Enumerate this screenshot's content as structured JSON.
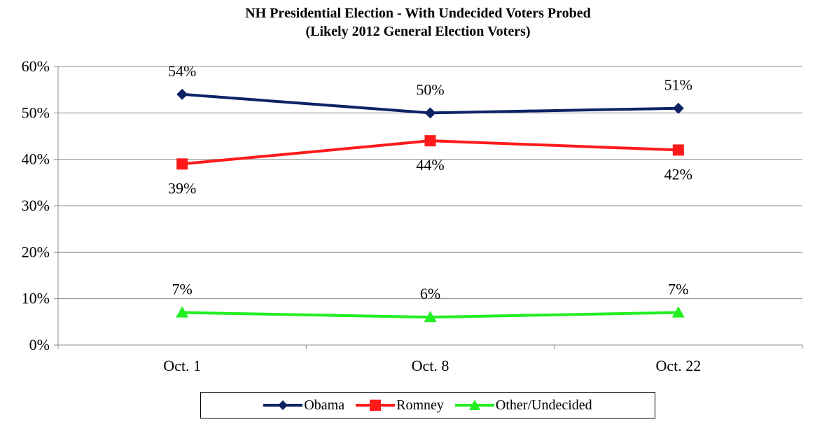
{
  "chart_data": {
    "type": "line",
    "title": "NH Presidential Election - With Undecided Voters Probed",
    "subtitle": "(Likely 2012 General Election Voters)",
    "categories": [
      "Oct. 1",
      "Oct. 8",
      "Oct. 22"
    ],
    "ylim": [
      0,
      60
    ],
    "yticks": [
      "0%",
      "10%",
      "20%",
      "30%",
      "40%",
      "50%",
      "60%"
    ],
    "grid": true,
    "legend_position": "bottom",
    "series": [
      {
        "name": "Obama",
        "values": [
          54,
          50,
          51
        ],
        "labels": [
          "54%",
          "50%",
          "51%"
        ],
        "color": "#0d2366",
        "marker": "diamond",
        "label_position": "above"
      },
      {
        "name": "Romney",
        "values": [
          39,
          44,
          42
        ],
        "labels": [
          "39%",
          "44%",
          "42%"
        ],
        "color": "#ff1a1a",
        "marker": "square",
        "label_position": "below"
      },
      {
        "name": "Other/Undecided",
        "values": [
          7,
          6,
          7
        ],
        "labels": [
          "7%",
          "6%",
          "7%"
        ],
        "color": "#22ee22",
        "marker": "triangle",
        "label_position": "above"
      }
    ]
  }
}
